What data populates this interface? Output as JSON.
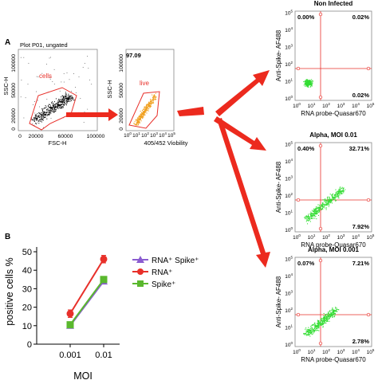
{
  "panel_a": {
    "letter": "A",
    "plot1": {
      "header": "Plot P01, ungated",
      "ylabel": "SSC-H",
      "xlabel": "FSC-H",
      "yticks": [
        "100000",
        "50000",
        "20000",
        "0"
      ],
      "xticks": [
        "0",
        "20000",
        "60000",
        "100000"
      ],
      "gate_label": "cells"
    },
    "plot2": {
      "percent": "97.09",
      "ylabel": "SSC-H",
      "xlabel": "405/452 Viobility",
      "yticks": [
        "100000",
        "50000",
        "20000",
        "0"
      ],
      "xticks": [
        "0",
        "1",
        "2",
        "3",
        "4",
        "5"
      ],
      "gate_label": "live"
    },
    "quads": [
      {
        "title": "Non Infected",
        "ul": "0.00%",
        "ur": "0.02%",
        "lr": "0.02%"
      },
      {
        "title": "Alpha, MOI 0.01",
        "ul": "0.40%",
        "ur": "32.71%",
        "lr": "7.92%"
      },
      {
        "title": "Alpha, MOI 0.001",
        "ul": "0.07%",
        "ur": "7.21%",
        "lr": "2.78%"
      }
    ],
    "quad_ylabel": "Anti-Spike- AF488",
    "quad_xlabel": "RNA probe-Quasar670",
    "quad_ticks": [
      "0",
      "1",
      "2",
      "3",
      "4",
      "5"
    ],
    "colors": {
      "gate": "#e8302a",
      "dots_plot1": "#000000",
      "dots_plot2": "#f0a020",
      "dots_quad": "#33dd33",
      "arrow": "#ec2a1e"
    }
  },
  "panel_b": {
    "letter": "B",
    "ylabel": "positive cells %",
    "xlabel": "MOI",
    "legend": [
      "RNA⁺ Spike⁺",
      "RNA⁺",
      "Spike⁺"
    ]
  },
  "chart_data": {
    "type": "line",
    "categories": [
      "0.001",
      "0.01"
    ],
    "ylabel": "positive cells %",
    "xlabel": "MOI",
    "ylim": [
      0,
      50
    ],
    "yticks": [
      0,
      10,
      20,
      30,
      40,
      50
    ],
    "series": [
      {
        "name": "RNA⁺ Spike⁺",
        "values": [
          10,
          34
        ],
        "color": "#8a5cd0",
        "marker": "triangle"
      },
      {
        "name": "RNA⁺",
        "values": [
          16.5,
          46
        ],
        "errors": [
          2,
          2
        ],
        "color": "#e8302a",
        "marker": "circle"
      },
      {
        "name": "Spike⁺",
        "values": [
          10.5,
          35
        ],
        "color": "#5ab82e",
        "marker": "square"
      }
    ]
  }
}
